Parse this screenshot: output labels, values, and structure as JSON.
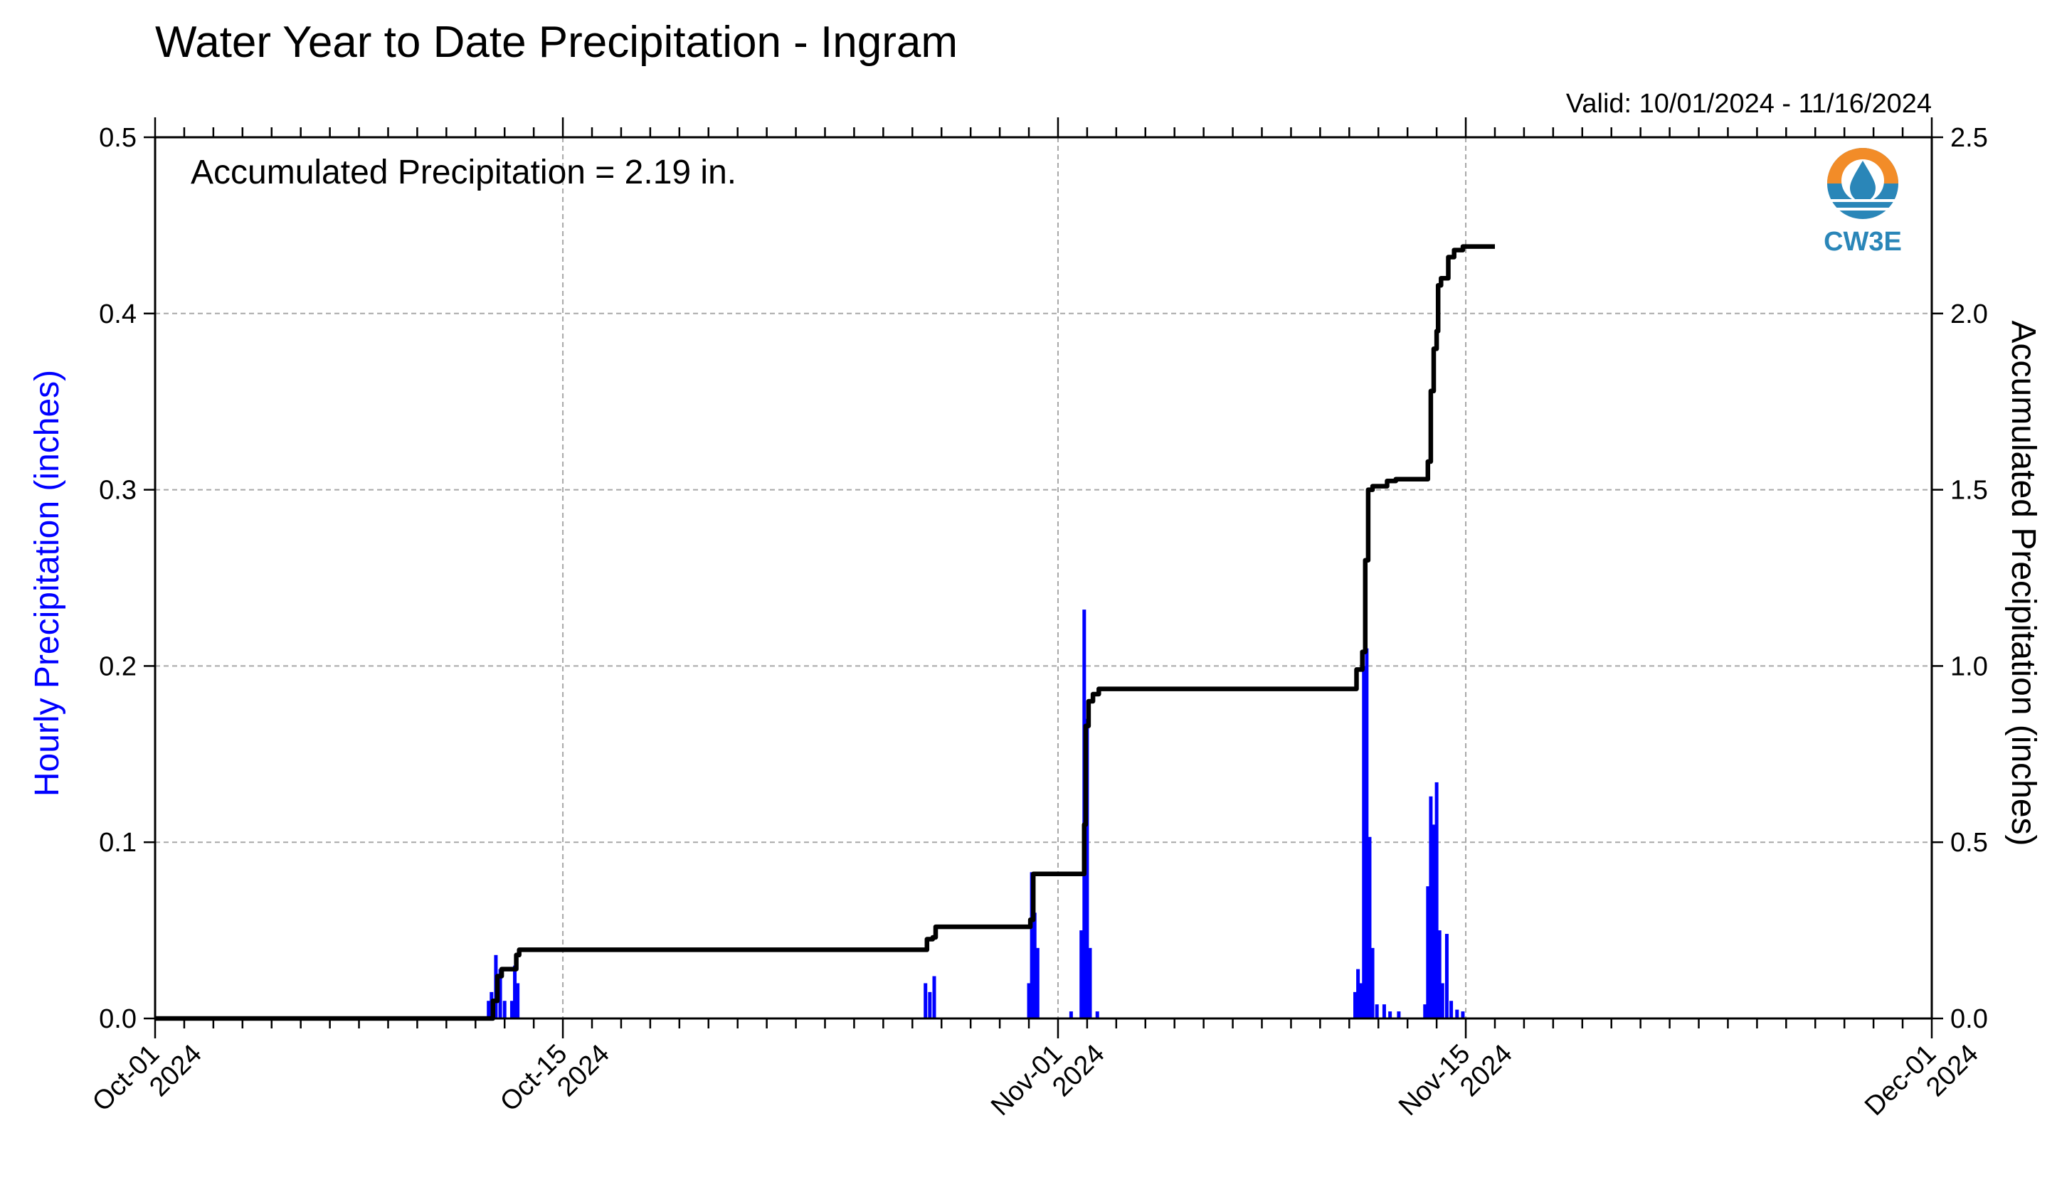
{
  "chart_data": {
    "type": "bar",
    "title": "Water Year to Date Precipitation - Ingram",
    "valid_text": "Valid: 10/01/2024 - 11/16/2024",
    "annotation": "Accumulated Precipitation = 2.19 in.",
    "logo_text": "CW3E",
    "ylabel_left": "Hourly Precipitation (inches)",
    "ylabel_right": "Accumulated Precipitation (inches)",
    "ylim_left": [
      0,
      0.5
    ],
    "ylim_right": [
      0,
      2.5
    ],
    "yticks_left": [
      "0.0",
      "0.1",
      "0.2",
      "0.3",
      "0.4",
      "0.5"
    ],
    "yticks_right": [
      "0.0",
      "0.5",
      "1.0",
      "1.5",
      "2.0",
      "2.5"
    ],
    "xlim_days": [
      0,
      61
    ],
    "xticks": [
      {
        "day": 0,
        "line1": "Oct-01",
        "line2": "2024"
      },
      {
        "day": 14,
        "line1": "Oct-15",
        "line2": "2024"
      },
      {
        "day": 31,
        "line1": "Nov-01",
        "line2": "2024"
      },
      {
        "day": 45,
        "line1": "Nov-15",
        "line2": "2024"
      },
      {
        "day": 61,
        "line1": "Dec-01",
        "line2": "2024"
      }
    ],
    "grid": true,
    "colors": {
      "hourly": "#0000ff",
      "accumulated": "#000000",
      "logo_orange": "#f28c28",
      "logo_blue": "#2a86b8"
    },
    "series": [
      {
        "name": "Hourly Precipitation",
        "kind": "bar",
        "points": [
          [
            11.45,
            0.01
          ],
          [
            11.55,
            0.015
          ],
          [
            11.7,
            0.036
          ],
          [
            11.85,
            0.028
          ],
          [
            12.0,
            0.01
          ],
          [
            12.25,
            0.01
          ],
          [
            12.35,
            0.03
          ],
          [
            12.45,
            0.02
          ],
          [
            26.45,
            0.02
          ],
          [
            26.6,
            0.015
          ],
          [
            26.75,
            0.024
          ],
          [
            30.0,
            0.02
          ],
          [
            30.1,
            0.083
          ],
          [
            30.2,
            0.06
          ],
          [
            30.3,
            0.04
          ],
          [
            31.45,
            0.004
          ],
          [
            31.8,
            0.05
          ],
          [
            31.9,
            0.232
          ],
          [
            32.0,
            0.17
          ],
          [
            32.1,
            0.04
          ],
          [
            32.35,
            0.004
          ],
          [
            41.2,
            0.015
          ],
          [
            41.3,
            0.028
          ],
          [
            41.4,
            0.02
          ],
          [
            41.5,
            0.2
          ],
          [
            41.6,
            0.21
          ],
          [
            41.7,
            0.103
          ],
          [
            41.8,
            0.04
          ],
          [
            41.95,
            0.008
          ],
          [
            42.2,
            0.008
          ],
          [
            42.4,
            0.004
          ],
          [
            42.7,
            0.004
          ],
          [
            43.6,
            0.008
          ],
          [
            43.7,
            0.075
          ],
          [
            43.8,
            0.126
          ],
          [
            43.9,
            0.11
          ],
          [
            44.0,
            0.134
          ],
          [
            44.1,
            0.05
          ],
          [
            44.2,
            0.02
          ],
          [
            44.35,
            0.048
          ],
          [
            44.5,
            0.01
          ],
          [
            44.7,
            0.005
          ],
          [
            44.9,
            0.004
          ]
        ]
      },
      {
        "name": "Accumulated Precipitation",
        "kind": "step-line",
        "points": [
          [
            0,
            0
          ],
          [
            11.5,
            0
          ],
          [
            11.6,
            0.05
          ],
          [
            11.75,
            0.12
          ],
          [
            11.9,
            0.14
          ],
          [
            12.3,
            0.14
          ],
          [
            12.4,
            0.18
          ],
          [
            12.5,
            0.195
          ],
          [
            26.3,
            0.195
          ],
          [
            26.5,
            0.225
          ],
          [
            26.7,
            0.23
          ],
          [
            26.8,
            0.26
          ],
          [
            30.0,
            0.26
          ],
          [
            30.05,
            0.28
          ],
          [
            30.15,
            0.41
          ],
          [
            31.8,
            0.41
          ],
          [
            31.9,
            0.55
          ],
          [
            31.95,
            0.83
          ],
          [
            32.05,
            0.9
          ],
          [
            32.2,
            0.92
          ],
          [
            32.4,
            0.935
          ],
          [
            41.1,
            0.935
          ],
          [
            41.25,
            0.99
          ],
          [
            41.45,
            1.04
          ],
          [
            41.55,
            1.3
          ],
          [
            41.65,
            1.5
          ],
          [
            41.8,
            1.51
          ],
          [
            42.1,
            1.51
          ],
          [
            42.3,
            1.525
          ],
          [
            42.6,
            1.53
          ],
          [
            43.6,
            1.53
          ],
          [
            43.7,
            1.58
          ],
          [
            43.8,
            1.78
          ],
          [
            43.9,
            1.9
          ],
          [
            44.0,
            1.95
          ],
          [
            44.05,
            2.08
          ],
          [
            44.15,
            2.1
          ],
          [
            44.3,
            2.1
          ],
          [
            44.4,
            2.16
          ],
          [
            44.6,
            2.18
          ],
          [
            44.9,
            2.19
          ],
          [
            46.0,
            2.19
          ]
        ]
      }
    ]
  }
}
